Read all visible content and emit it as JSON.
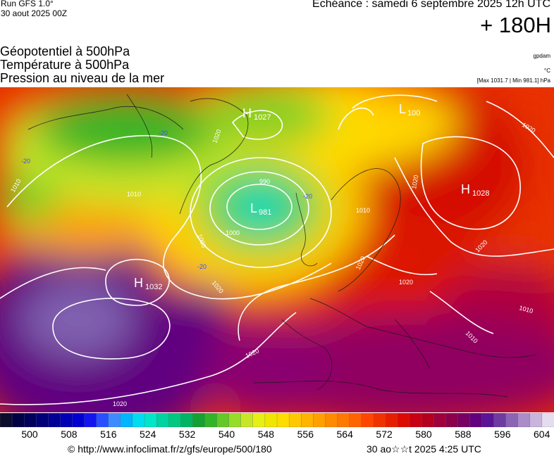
{
  "header": {
    "run_label": "Run GFS 1.0°",
    "run_date": "30 aout 2025 00Z",
    "echeance": "Echéance : samedi 6 septembre 2025 12h UTC",
    "lead_time": "+ 180H"
  },
  "titles": {
    "line1": "Géopotentiel à 500hPa",
    "line2": "Température à 500hPa",
    "line3": "Pression au niveau de la mer"
  },
  "units": {
    "geopotential": "gpdam",
    "temperature": "°C",
    "pressure": "[Max 1031.7 | Min 981.1] hPa"
  },
  "map": {
    "pressure_centers": [
      {
        "type": "H",
        "value": "1027"
      },
      {
        "type": "L",
        "value": "100"
      },
      {
        "type": "H",
        "value": "1028"
      },
      {
        "type": "L",
        "value": "981"
      },
      {
        "type": "H",
        "value": "1032"
      }
    ],
    "isobar_labels": [
      "1010",
      "1020",
      "1010",
      "1000",
      "990",
      "1000",
      "1010",
      "1020",
      "1020",
      "1020",
      "1020",
      "1020",
      "1010",
      "1020",
      "1010",
      "1020",
      "1020"
    ],
    "temperature_labels": [
      "-20",
      "-20",
      "-20",
      "-20"
    ]
  },
  "scale": {
    "colors": [
      "#0b0b2b",
      "#000044",
      "#00005c",
      "#000078",
      "#000096",
      "#0000b4",
      "#0000d2",
      "#1414f0",
      "#2850ff",
      "#3c8cff",
      "#00b4ff",
      "#00dcf0",
      "#00e6c8",
      "#00d2a0",
      "#00c880",
      "#00b464",
      "#14a032",
      "#32b428",
      "#64c828",
      "#96dc28",
      "#c8e628",
      "#e6f014",
      "#f0e600",
      "#ffdc00",
      "#ffc800",
      "#ffb400",
      "#ffa000",
      "#ff8c00",
      "#ff7800",
      "#ff6400",
      "#ff4600",
      "#f03200",
      "#e61e00",
      "#dc0a00",
      "#c80014",
      "#b4001e",
      "#a0003c",
      "#8c004b",
      "#780064",
      "#64007d",
      "#5a1496",
      "#6e3ca0",
      "#8c64b4",
      "#aa8cc8",
      "#c8b4dc",
      "#e6dcf0"
    ],
    "ticks": [
      "500",
      "508",
      "516",
      "524",
      "532",
      "540",
      "548",
      "556",
      "564",
      "572",
      "580",
      "588",
      "596",
      "604"
    ]
  },
  "footer": {
    "copyright": "© http://www.infoclimat.fr/z/gfs/europe/500/180",
    "stamp": "30 ao☆☆t 2025  4:25 UTC"
  }
}
